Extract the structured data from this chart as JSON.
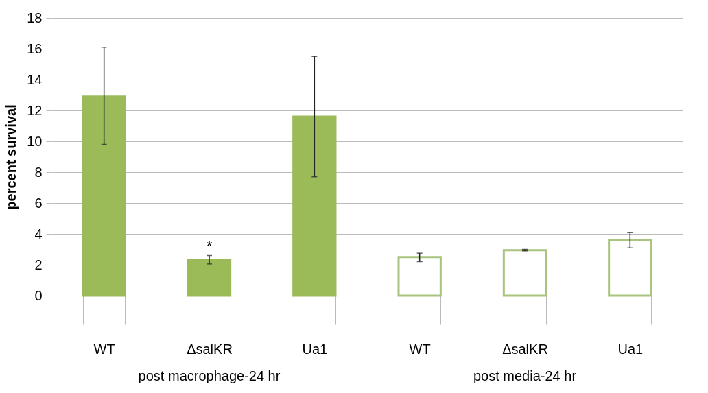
{
  "chart_data": {
    "type": "bar",
    "ylabel": "percent survival",
    "categories": [
      "WT",
      "ΔsalKR",
      "Ua1",
      "WT",
      "ΔsalKR",
      "Ua1"
    ],
    "series": [
      {
        "color": "#9bbb59",
        "values": [
          12.9,
          2.3,
          11.6,
          null,
          null,
          null
        ],
        "errors": [
          [
            9.8,
            16.1
          ],
          [
            2.05,
            2.6
          ],
          [
            7.7,
            15.5
          ],
          null,
          null,
          null
        ]
      },
      {
        "color": "#a9c47f",
        "values": [
          null,
          null,
          null,
          2.5,
          2.95,
          3.6
        ],
        "errors": [
          null,
          null,
          null,
          [
            2.2,
            2.75
          ],
          [
            2.9,
            3.0
          ],
          [
            3.1,
            4.1
          ]
        ]
      }
    ],
    "ylim": [
      0,
      18
    ],
    "yticks": [
      0,
      2,
      4,
      6,
      8,
      10,
      12,
      14,
      16,
      18
    ],
    "grid": "y",
    "annotations": [
      {
        "text": "*",
        "x": "ΔsalKR",
        "y": 2.75
      },
      "post macrophage-24 hr",
      "post media-24 hr"
    ]
  }
}
